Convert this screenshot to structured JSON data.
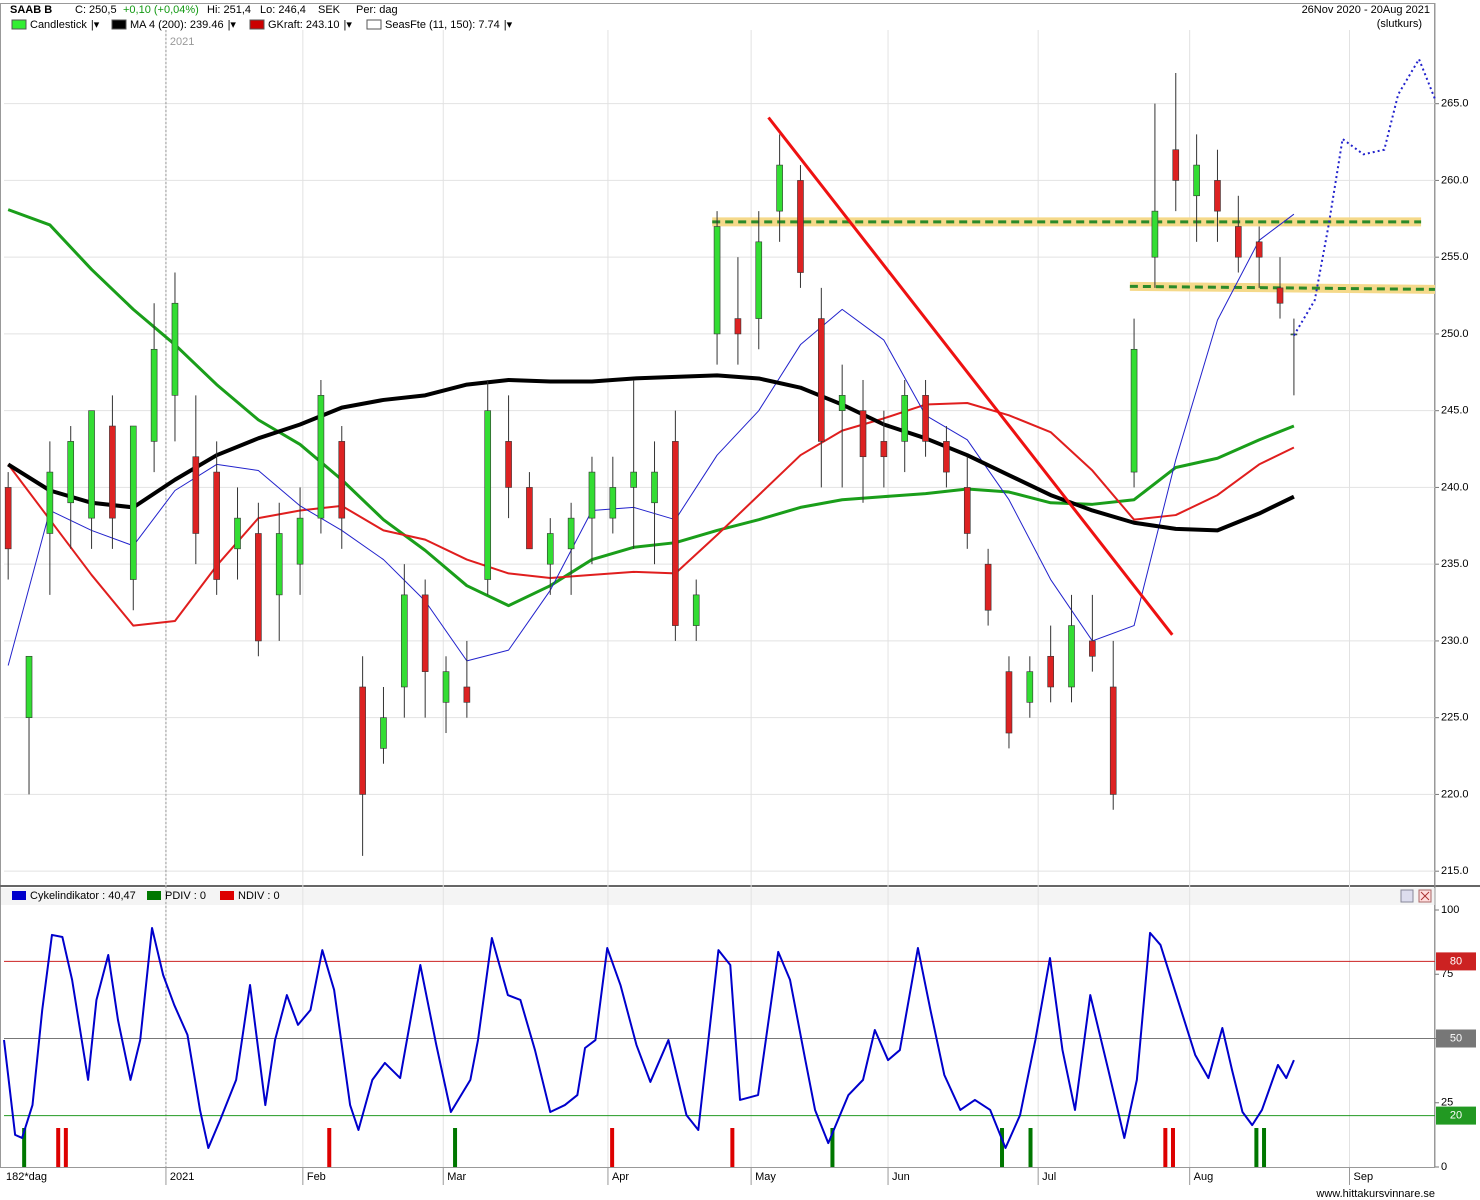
{
  "header": {
    "symbol": "SAAB B",
    "close": "C: 250,5",
    "change": "+0,10 (+0,04%)",
    "high": "Hi: 251,4",
    "low": "Lo: 246,4",
    "currency": "SEK",
    "period": "Per: dag",
    "date_range": "26Nov 2020 - 20Aug 2021",
    "price_basis": "(slutkurs)"
  },
  "legend": [
    {
      "label": "Candlestick",
      "color": "#33ee33"
    },
    {
      "label": "MA 4 (200): 239.46",
      "color": "#000000"
    },
    {
      "label": "GKraft: 243.10",
      "color": "#cc0000"
    },
    {
      "label": "SeasFte (11, 150): 7.74",
      "color": "#ffffff"
    }
  ],
  "chart_data": [
    {
      "type": "candlestick",
      "xlim": [
        -0.6,
        205.3
      ],
      "ylim": [
        214.1,
        269.8
      ],
      "grid": true,
      "yticks": [
        {
          "value": 215,
          "label": "215.0"
        },
        {
          "value": 220,
          "label": "220.0"
        },
        {
          "value": 225,
          "label": "225.0"
        },
        {
          "value": 230,
          "label": "230.0"
        },
        {
          "value": 235,
          "label": "235.0"
        },
        {
          "value": 240,
          "label": "240.0"
        },
        {
          "value": 245,
          "label": "245.0"
        },
        {
          "value": 250,
          "label": "250.0"
        },
        {
          "value": 255,
          "label": "255.0"
        },
        {
          "value": 260,
          "label": "260.0"
        },
        {
          "value": 265,
          "label": "265.0"
        }
      ],
      "xticks": [
        {
          "value": 22.7,
          "label": "2021"
        },
        {
          "value": 42.4,
          "label": "Feb"
        },
        {
          "value": 62.6,
          "label": "Mar"
        },
        {
          "value": 86.3,
          "label": "Apr"
        },
        {
          "value": 106.9,
          "label": "May"
        },
        {
          "value": 126.6,
          "label": "Jun"
        },
        {
          "value": 148.2,
          "label": "Jul"
        },
        {
          "value": 170,
          "label": "Aug"
        },
        {
          "value": 193,
          "label": "Sep"
        }
      ],
      "year_marker": {
        "value": 22.7,
        "label": "2021"
      },
      "up_color": "#33dd33",
      "down_color": "#dd2222",
      "candles": {
        "x": [
          0,
          3,
          6,
          9,
          12,
          15,
          18,
          21,
          24,
          27,
          30,
          33,
          36,
          39,
          42,
          45,
          48,
          51,
          54,
          57,
          60,
          63,
          66,
          69,
          72,
          75,
          78,
          81,
          84,
          87,
          90,
          93,
          96,
          99,
          102,
          105,
          108,
          111,
          114,
          117,
          120,
          123,
          126,
          129,
          132,
          135,
          138,
          141,
          144,
          147,
          150,
          153,
          156,
          159,
          162,
          165,
          168,
          171,
          174,
          177,
          180,
          183,
          185
        ],
        "open": [
          240,
          225,
          237,
          239,
          238,
          244,
          234,
          243,
          246,
          242,
          241,
          236,
          237,
          233,
          235,
          238,
          243,
          227,
          223,
          227,
          233,
          226,
          227,
          234,
          243,
          240,
          235,
          236,
          238,
          238,
          240,
          239,
          243,
          231,
          250,
          251,
          251,
          258,
          260,
          251,
          245,
          245,
          243,
          243,
          246,
          243,
          240,
          235,
          228,
          226,
          229,
          227,
          230,
          227,
          241,
          255,
          262,
          259,
          260,
          257,
          256,
          253,
          250
        ],
        "high": [
          241,
          229,
          243,
          244,
          245,
          246,
          244,
          252,
          254,
          246,
          243,
          240,
          239,
          239,
          240,
          247,
          244,
          229,
          227,
          235,
          234,
          229,
          230,
          247,
          246,
          241,
          238,
          239,
          242,
          242,
          247,
          243,
          245,
          234,
          258,
          255,
          258,
          263,
          261,
          253,
          248,
          247,
          245,
          247,
          247,
          244,
          242,
          236,
          229,
          229,
          231,
          233,
          233,
          230,
          251,
          265,
          267,
          263,
          262,
          259,
          257,
          255,
          251
        ],
        "low": [
          234,
          220,
          233,
          236,
          236,
          236,
          232,
          241,
          243,
          235,
          233,
          234,
          229,
          230,
          233,
          237,
          236,
          216,
          222,
          225,
          225,
          224,
          225,
          233,
          238,
          236,
          233,
          233,
          235,
          237,
          236,
          235,
          230,
          230,
          248,
          248,
          249,
          256,
          253,
          240,
          240,
          239,
          240,
          241,
          242,
          240,
          236,
          231,
          223,
          225,
          226,
          226,
          228,
          219,
          240,
          253,
          258,
          256,
          256,
          254,
          253,
          251,
          246
        ],
        "close": [
          236,
          229,
          241,
          243,
          245,
          238,
          244,
          249,
          252,
          237,
          234,
          238,
          230,
          237,
          238,
          246,
          238,
          220,
          225,
          233,
          228,
          228,
          226,
          245,
          240,
          236,
          237,
          238,
          241,
          240,
          241,
          241,
          231,
          233,
          257,
          250,
          256,
          261,
          254,
          243,
          246,
          242,
          242,
          246,
          243,
          241,
          237,
          232,
          224,
          228,
          227,
          231,
          229,
          220,
          249,
          258,
          260,
          261,
          258,
          255,
          255,
          252,
          250
        ]
      },
      "line_x": [
        0,
        6,
        12,
        18,
        24,
        30,
        36,
        42,
        48,
        54,
        60,
        66,
        72,
        78,
        84,
        90,
        96,
        102,
        108,
        114,
        120,
        126,
        132,
        138,
        144,
        150,
        156,
        162,
        168,
        174,
        180,
        185
      ],
      "lines": [
        {
          "color": "#1a9e1a",
          "width": 3,
          "values": [
            258.1,
            257.1,
            254.2,
            251.6,
            249.3,
            246.7,
            244.4,
            242.8,
            240.5,
            237.9,
            235.9,
            233.6,
            232.3,
            233.6,
            235.3,
            236.1,
            236.4,
            237.2,
            237.9,
            238.7,
            239.2,
            239.4,
            239.6,
            239.9,
            239.7,
            239.0,
            238.9,
            239.2,
            241.3,
            241.9,
            243.1,
            244.0
          ]
        },
        {
          "color": "#e01e1e",
          "width": 2,
          "values": [
            241.5,
            237.9,
            234.3,
            231.0,
            231.3,
            234.9,
            238.0,
            238.5,
            238.8,
            237.2,
            236.6,
            235.3,
            234.4,
            234.1,
            234.3,
            234.5,
            234.4,
            236.9,
            239.5,
            242.1,
            243.7,
            244.5,
            245.4,
            245.5,
            244.7,
            243.6,
            241.1,
            237.9,
            238.2,
            239.5,
            241.5,
            242.6
          ]
        },
        {
          "color": "#2222cc",
          "width": 1,
          "values": [
            228.4,
            238.5,
            237.2,
            236.2,
            239.8,
            241.5,
            241.1,
            238.8,
            237.2,
            235.3,
            232.6,
            228.7,
            229.4,
            233.3,
            238.5,
            238.7,
            237.9,
            242.1,
            245.0,
            249.3,
            251.6,
            249.6,
            244.7,
            243.1,
            239.2,
            234.0,
            230.0,
            231.0,
            241.8,
            250.9,
            256.1,
            257.8
          ]
        },
        {
          "color": "#000000",
          "width": 4,
          "values": [
            241.5,
            239.8,
            239.0,
            238.7,
            240.5,
            242.1,
            243.2,
            244.1,
            245.2,
            245.7,
            246.0,
            246.7,
            247.0,
            246.9,
            246.9,
            247.1,
            247.2,
            247.3,
            247.1,
            246.5,
            245.4,
            244.1,
            243.2,
            242.1,
            240.8,
            239.5,
            238.5,
            237.7,
            237.3,
            237.2,
            238.3,
            239.4
          ]
        }
      ],
      "projection": {
        "color": "#2222cc",
        "x": [
          185,
          188,
          190,
          192,
          195,
          198,
          200,
          203,
          205.3
        ],
        "values": [
          249.9,
          252.2,
          257.1,
          262.7,
          261.7,
          262.0,
          265.6,
          267.9,
          265.3
        ]
      },
      "trend_line": {
        "color": "#ee1111",
        "x": [
          109.4,
          167.5
        ],
        "values": [
          264.1,
          230.4
        ]
      },
      "support_lines": [
        {
          "x": [
            101.3,
            203.3
          ],
          "values": [
            257.3,
            257.3
          ]
        },
        {
          "x": [
            161.4,
            205.3
          ],
          "values": [
            253.1,
            252.9
          ]
        }
      ]
    },
    {
      "type": "line",
      "legend": [
        {
          "label": "Cykelindikator : 40,47",
          "color": "#0000cc"
        },
        {
          "label": "PDIV : 0",
          "color": "#007700"
        },
        {
          "label": "NDIV : 0",
          "color": "#dd0000"
        }
      ],
      "ylim": [
        0,
        100
      ],
      "yticks": [
        0,
        25,
        50,
        75,
        100
      ],
      "levels": [
        {
          "value": 80,
          "color": "#cc2222"
        },
        {
          "value": 50,
          "color": "#777777"
        },
        {
          "value": 20,
          "color": "#229922"
        }
      ],
      "color": "#0000cc",
      "x": [
        -0.6,
        1.0,
        2.0,
        3.5,
        4.9,
        6.3,
        7.8,
        9.2,
        11.5,
        12.7,
        14.4,
        15.8,
        17.6,
        19.0,
        20.7,
        22.3,
        23.9,
        25.8,
        27.6,
        28.8,
        30.5,
        32.8,
        34.8,
        37.0,
        38.4,
        40.1,
        41.7,
        43.5,
        45.2,
        46.9,
        49.2,
        50.4,
        52.4,
        54.2,
        56.4,
        59.3,
        61.6,
        63.7,
        66.5,
        67.6,
        69.6,
        71.9,
        73.7,
        75.8,
        78.0,
        80.1,
        81.9,
        83.0,
        84.5,
        86.2,
        88.1,
        90.4,
        92.4,
        95.0,
        97.6,
        99.3,
        102.2,
        103.9,
        105.3,
        107.9,
        110.8,
        112.5,
        114.7,
        116.1,
        118.0,
        120.9,
        123.0,
        124.7,
        126.6,
        128.3,
        130.9,
        132.7,
        134.7,
        137.0,
        139.1,
        141.3,
        143.5,
        145.6,
        147.8,
        149.9,
        151.7,
        153.5,
        155.7,
        158.3,
        160.6,
        162.4,
        164.3,
        165.8,
        168.3,
        170.8,
        172.7,
        174.7,
        176.1,
        177.6,
        179.0,
        180.4,
        182.7,
        183.9,
        185.0
      ],
      "values": [
        49.4,
        12.5,
        11.3,
        24.1,
        61.1,
        90.3,
        89.5,
        72.8,
        33.9,
        65.0,
        82.5,
        57.2,
        33.9,
        49.4,
        93.0,
        74.7,
        63.0,
        51.4,
        22.2,
        7.4,
        18.3,
        33.9,
        70.8,
        24.1,
        49.4,
        66.9,
        55.3,
        61.1,
        84.4,
        68.9,
        24.1,
        14.4,
        33.9,
        40.5,
        34.6,
        78.6,
        47.5,
        21.4,
        33.9,
        49.4,
        89.1,
        66.9,
        65.0,
        45.5,
        21.4,
        24.1,
        28.0,
        46.3,
        49.4,
        85.2,
        70.8,
        47.5,
        33.1,
        49.4,
        20.2,
        14.4,
        84.4,
        78.6,
        26.1,
        28.0,
        83.7,
        72.8,
        41.6,
        22.2,
        9.3,
        28.0,
        33.9,
        53.3,
        41.6,
        45.5,
        85.2,
        61.1,
        35.8,
        22.2,
        26.1,
        22.2,
        7.4,
        20.2,
        49.4,
        81.3,
        45.5,
        22.2,
        66.9,
        37.7,
        11.3,
        33.9,
        91.1,
        86.4,
        65.0,
        43.6,
        34.6,
        54.1,
        37.7,
        21.4,
        16.3,
        22.2,
        39.7,
        34.6,
        41.6
      ],
      "pdiv_signals": [
        2.3,
        64.3,
        118.6,
        143.0,
        147.1,
        179.6,
        180.7
      ],
      "ndiv_signals": [
        7.2,
        8.3,
        46.2,
        86.9,
        104.2,
        166.5,
        167.6
      ]
    }
  ],
  "footer": {
    "period_label": "182*dag",
    "website": "www.hittakursvinnare.se"
  }
}
